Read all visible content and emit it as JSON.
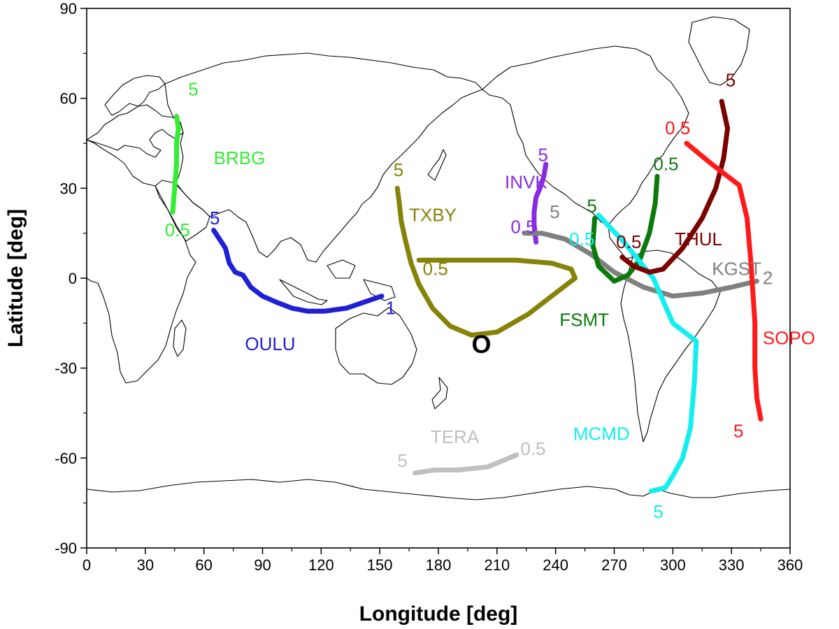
{
  "chart_data": {
    "type": "line",
    "xlabel": "Longitude [deg]",
    "ylabel": "Latitude [deg]",
    "xlim": [
      0,
      360
    ],
    "ylim": [
      -90,
      90
    ],
    "x_ticks": [
      0,
      30,
      60,
      90,
      120,
      150,
      180,
      210,
      240,
      270,
      300,
      330,
      360
    ],
    "y_ticks": [
      90,
      60,
      30,
      0,
      -30,
      -60,
      -90
    ],
    "x_tick_labels": [
      "0",
      "30",
      "60",
      "90",
      "120",
      "150",
      "180",
      "210",
      "240",
      "270",
      "300",
      "330",
      "360"
    ],
    "y_tick_labels": [
      "90",
      "60",
      "30",
      "0",
      "-30",
      "-60",
      "-90"
    ],
    "grid": false,
    "background": "world coastline map",
    "origin_marker": {
      "label": "O",
      "lon": 202,
      "lat": -25
    },
    "series": [
      {
        "name": "BRBG",
        "color": "#33ee33",
        "points": [
          [
            44,
            22
          ],
          [
            45,
            30
          ],
          [
            46,
            38
          ],
          [
            46,
            45
          ],
          [
            47,
            50
          ],
          [
            46,
            54
          ]
        ],
        "rigidity_labels": [
          {
            "text": "5",
            "lon": 52,
            "lat": 61
          },
          {
            "text": "0.5",
            "lon": 40,
            "lat": 14
          }
        ],
        "name_label": {
          "lon": 65,
          "lat": 38
        }
      },
      {
        "name": "OULU",
        "color": "#1f1fd6",
        "points": [
          [
            65,
            16
          ],
          [
            68,
            13
          ],
          [
            71,
            10
          ],
          [
            73,
            5
          ],
          [
            76,
            2
          ],
          [
            80,
            1
          ],
          [
            84,
            -3
          ],
          [
            90,
            -6
          ],
          [
            97,
            -8
          ],
          [
            105,
            -10
          ],
          [
            113,
            -11
          ],
          [
            122,
            -11
          ],
          [
            133,
            -10
          ],
          [
            142,
            -8
          ],
          [
            151,
            -6
          ]
        ],
        "rigidity_labels": [
          {
            "text": "5",
            "lon": 63,
            "lat": 18
          },
          {
            "text": "1",
            "lon": 153,
            "lat": -12
          }
        ],
        "name_label": {
          "lon": 81,
          "lat": -24
        }
      },
      {
        "name": "TXBY",
        "color": "#878208",
        "points": [
          [
            159,
            30
          ],
          [
            160,
            25
          ],
          [
            161,
            19
          ],
          [
            163,
            13
          ],
          [
            166,
            5
          ],
          [
            170,
            -2
          ],
          [
            177,
            -10
          ],
          [
            186,
            -16
          ],
          [
            197,
            -19
          ],
          [
            210,
            -18
          ],
          [
            226,
            -12
          ],
          [
            240,
            -5
          ],
          [
            250,
            0
          ],
          [
            248,
            3
          ],
          [
            238,
            5
          ],
          [
            220,
            6
          ],
          [
            195,
            6
          ],
          [
            178,
            6
          ],
          [
            170,
            6
          ]
        ],
        "rigidity_labels": [
          {
            "text": "5",
            "lon": 157,
            "lat": 34
          },
          {
            "text": "0.5",
            "lon": 172,
            "lat": 1
          }
        ],
        "name_label": {
          "lon": 165,
          "lat": 19
        }
      },
      {
        "name": "INVK",
        "color": "#8a2be2",
        "points": [
          [
            235,
            38
          ],
          [
            234,
            34
          ],
          [
            232,
            30
          ],
          [
            230,
            27
          ],
          [
            229,
            22
          ],
          [
            229,
            18
          ],
          [
            230,
            12
          ]
        ],
        "rigidity_labels": [
          {
            "text": "5",
            "lon": 231,
            "lat": 39
          },
          {
            "text": "0.5",
            "lon": 217,
            "lat": 15
          }
        ],
        "name_label": {
          "lon": 214,
          "lat": 30
        }
      },
      {
        "name": "KGST",
        "color": "#808080",
        "points": [
          [
            224,
            15
          ],
          [
            233,
            15
          ],
          [
            245,
            13
          ],
          [
            258,
            8
          ],
          [
            270,
            2
          ],
          [
            285,
            -3
          ],
          [
            300,
            -6
          ],
          [
            315,
            -5
          ],
          [
            330,
            -3
          ],
          [
            343,
            -1
          ]
        ],
        "rigidity_labels": [
          {
            "text": "5",
            "lon": 237,
            "lat": 20
          },
          {
            "text": "2",
            "lon": 346,
            "lat": -2
          }
        ],
        "name_label": {
          "lon": 320,
          "lat": 1
        }
      },
      {
        "name": "FSMT",
        "color": "#0b7a0b",
        "points": [
          [
            292,
            34
          ],
          [
            291,
            25
          ],
          [
            288,
            15
          ],
          [
            283,
            6
          ],
          [
            277,
            1
          ],
          [
            270,
            -1
          ],
          [
            262,
            4
          ],
          [
            259,
            11
          ],
          [
            260,
            20
          ]
        ],
        "rigidity_labels": [
          {
            "text": "5",
            "lon": 256,
            "lat": 22
          },
          {
            "text": "0.5",
            "lon": 290,
            "lat": 36
          }
        ],
        "name_label": {
          "lon": 242,
          "lat": -16
        }
      },
      {
        "name": "MCMD",
        "color": "#13eef0",
        "points": [
          [
            262,
            21
          ],
          [
            275,
            12
          ],
          [
            290,
            0
          ],
          [
            300,
            -15
          ],
          [
            312,
            -21
          ],
          [
            311,
            -35
          ],
          [
            309,
            -50
          ],
          [
            305,
            -60
          ],
          [
            300,
            -66
          ],
          [
            296,
            -70
          ],
          [
            289,
            -71
          ]
        ],
        "rigidity_labels": [
          {
            "text": "5",
            "lon": 290,
            "lat": -80
          },
          {
            "text": "0.5",
            "lon": 247,
            "lat": 11
          }
        ],
        "name_label": {
          "lon": 249,
          "lat": -54
        }
      },
      {
        "name": "THUL",
        "color": "#7b0000",
        "points": [
          [
            325,
            59
          ],
          [
            328,
            50
          ],
          [
            326,
            40
          ],
          [
            322,
            30
          ],
          [
            315,
            20
          ],
          [
            305,
            10
          ],
          [
            295,
            3
          ],
          [
            288,
            2
          ],
          [
            280,
            4
          ],
          [
            274,
            7
          ]
        ],
        "rigidity_labels": [
          {
            "text": "5",
            "lon": 327,
            "lat": 64
          },
          {
            "text": "0.5",
            "lon": 271,
            "lat": 10
          }
        ],
        "name_label": {
          "lon": 301,
          "lat": 11
        }
      },
      {
        "name": "SOPO",
        "color": "#ff1a1a",
        "points": [
          [
            307,
            45
          ],
          [
            320,
            38
          ],
          [
            334,
            31
          ],
          [
            338,
            20
          ],
          [
            340,
            5
          ],
          [
            342,
            -15
          ],
          [
            342,
            -30
          ],
          [
            343,
            -40
          ],
          [
            345,
            -47
          ]
        ],
        "rigidity_labels": [
          {
            "text": "0.5",
            "lon": 296,
            "lat": 48
          },
          {
            "text": "5",
            "lon": 331,
            "lat": -53
          }
        ],
        "name_label": {
          "lon": 346,
          "lat": -22
        }
      },
      {
        "name": "TERA",
        "color": "#c0c0c0",
        "points": [
          [
            168,
            -65
          ],
          [
            178,
            -64
          ],
          [
            190,
            -64
          ],
          [
            205,
            -63
          ],
          [
            220,
            -59
          ]
        ],
        "rigidity_labels": [
          {
            "text": "5",
            "lon": 159,
            "lat": -63
          },
          {
            "text": "0.5",
            "lon": 222,
            "lat": -59
          }
        ],
        "name_label": {
          "lon": 176,
          "lat": -55
        }
      }
    ]
  }
}
